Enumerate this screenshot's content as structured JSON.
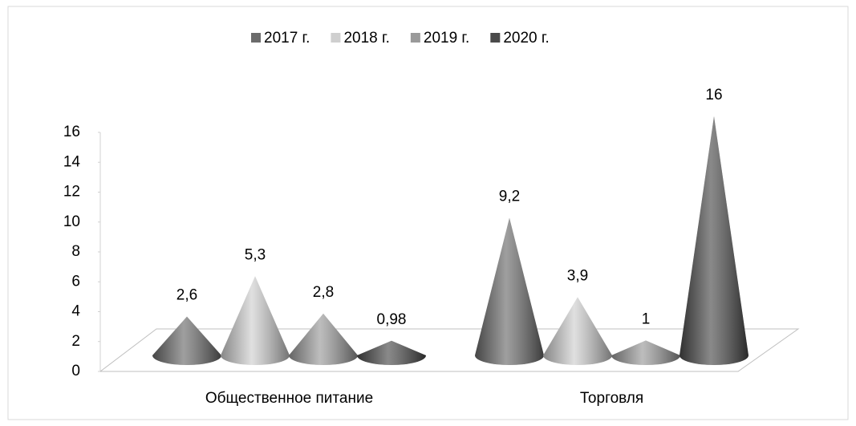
{
  "chart_data": {
    "type": "cone",
    "categories": [
      "Общественное питание",
      "Торговля"
    ],
    "series": [
      {
        "name": "2017 г.",
        "color": "#6b6b6b",
        "values": [
          2.6,
          9.2
        ],
        "value_labels": [
          "2,6",
          "9,2"
        ]
      },
      {
        "name": "2018 г.",
        "color": "#cfcfcf",
        "values": [
          5.3,
          3.9
        ],
        "value_labels": [
          "5,3",
          "3,9"
        ]
      },
      {
        "name": "2019 г.",
        "color": "#9a9a9a",
        "values": [
          2.8,
          1
        ],
        "value_labels": [
          "2,8",
          "1"
        ]
      },
      {
        "name": "2020 г.",
        "color": "#4a4a4a",
        "values": [
          0.98,
          16
        ],
        "value_labels": [
          "0,98",
          "16"
        ]
      }
    ],
    "ylim": [
      0,
      16
    ],
    "yticks": [
      0,
      2,
      4,
      6,
      8,
      10,
      12,
      14,
      16
    ],
    "legend": "top"
  }
}
